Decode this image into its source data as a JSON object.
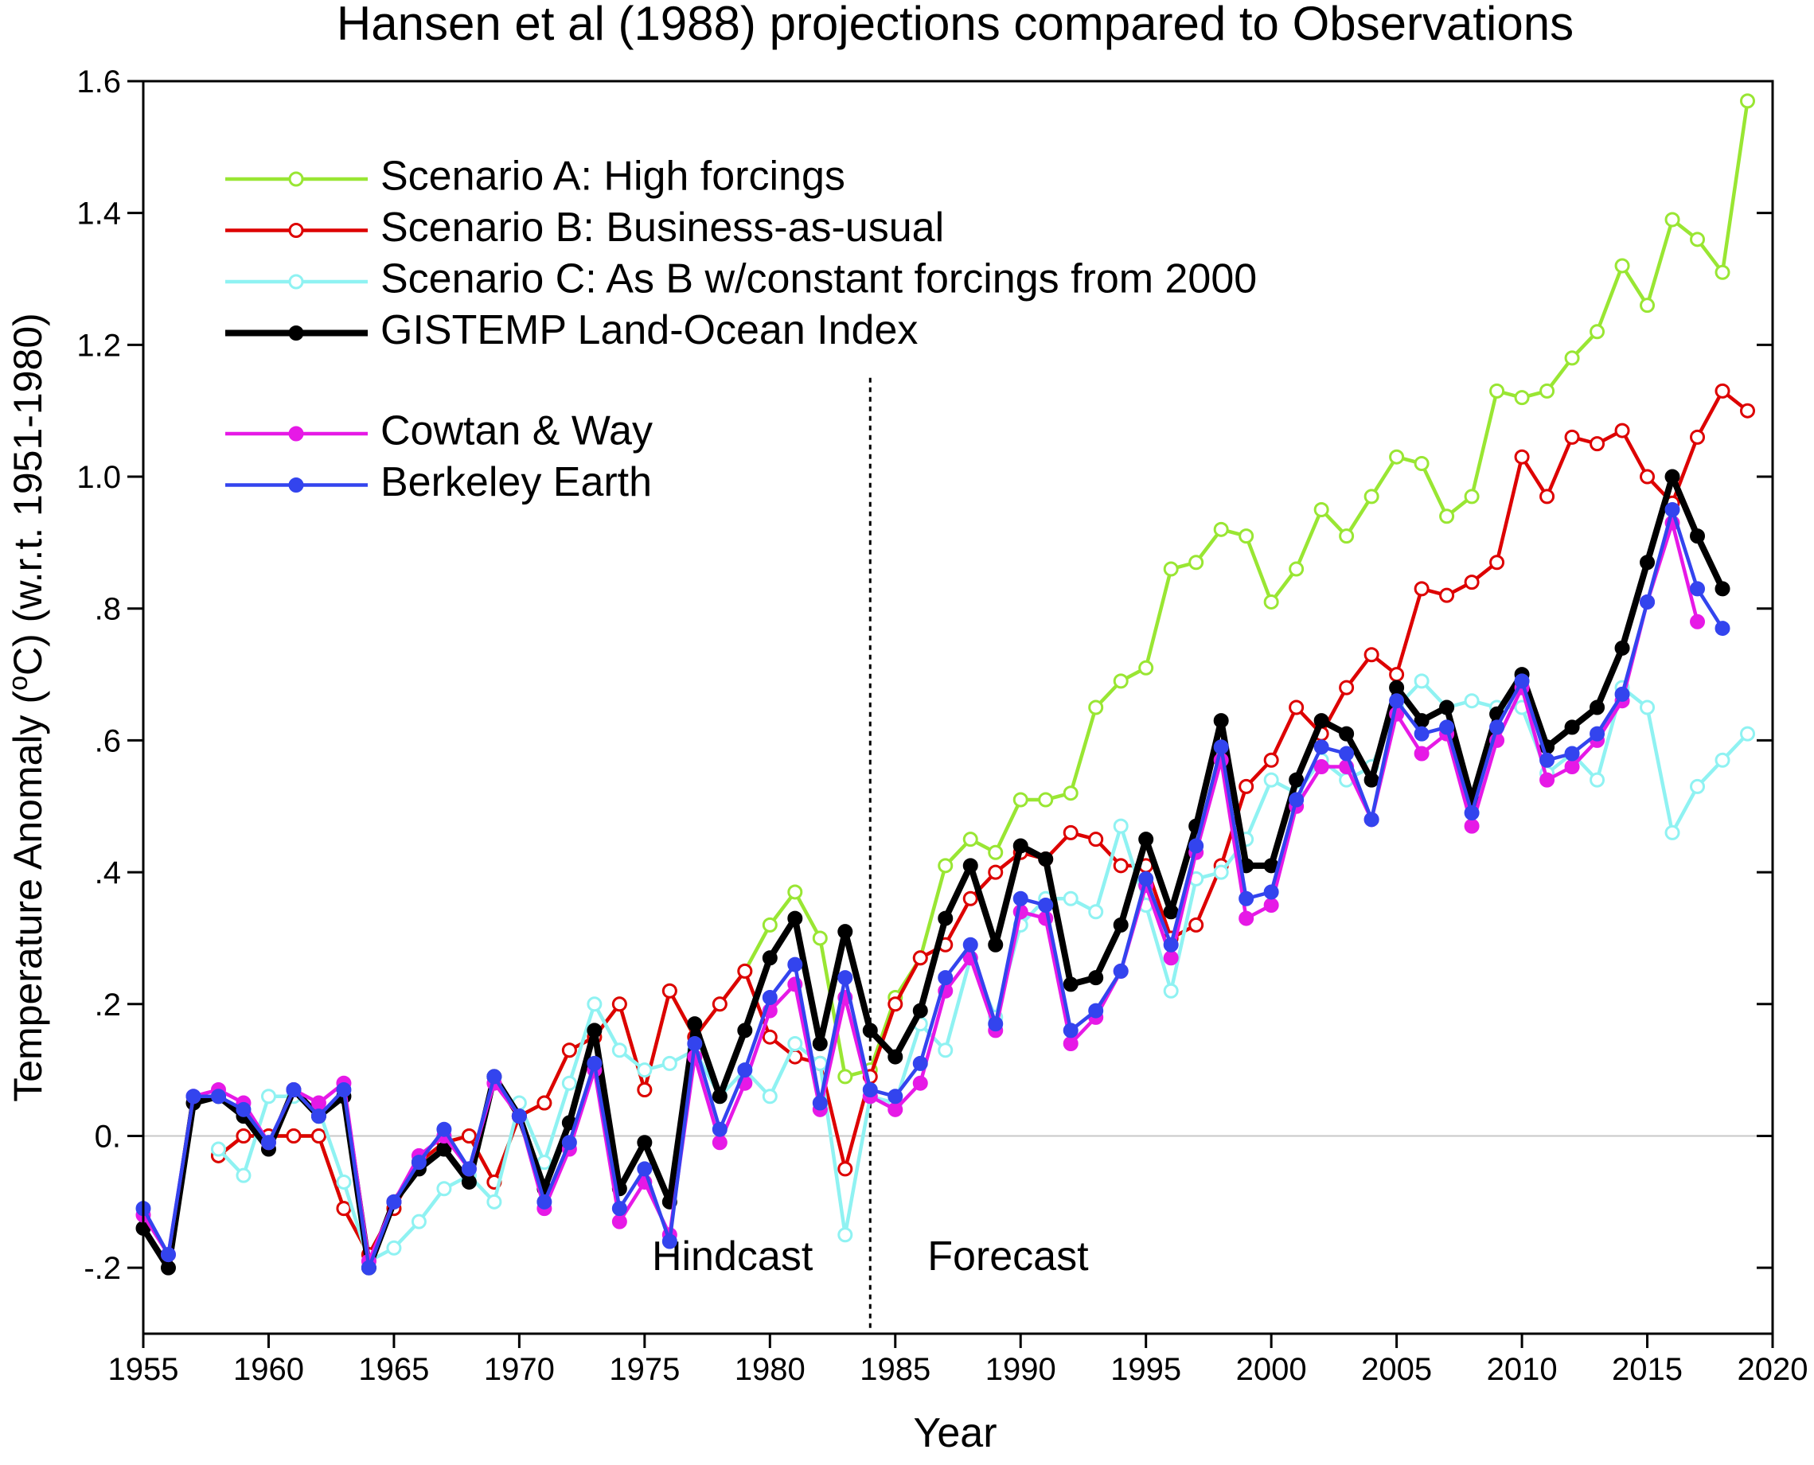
{
  "chart_data": {
    "type": "line",
    "title": "Hansen et al (1988) projections compared to Observations",
    "xlabel": "Year",
    "ylabel": [
      "Temperature Anomaly (",
      "o",
      "C) (w.r.t. 1951-1980)"
    ],
    "xlim": [
      1955,
      2020
    ],
    "ylim": [
      -0.3,
      1.6
    ],
    "xticks": [
      1955,
      1960,
      1965,
      1970,
      1975,
      1980,
      1985,
      1990,
      1995,
      2000,
      2005,
      2010,
      2015,
      2020
    ],
    "yticks": [
      {
        "value": -0.2,
        "label": "-.2"
      },
      {
        "value": 0,
        "label": "0."
      },
      {
        "value": 0.2,
        "label": ".2"
      },
      {
        "value": 0.4,
        "label": ".4"
      },
      {
        "value": 0.6,
        "label": ".6"
      },
      {
        "value": 0.8,
        "label": ".8"
      },
      {
        "value": 1,
        "label": "1.0"
      },
      1.2,
      1.4,
      1.6
    ],
    "zero_line": true,
    "divider": {
      "x": 1984
    },
    "annotations": [
      "Hindcast",
      "Forecast"
    ],
    "x": [
      1955,
      1956,
      1957,
      1958,
      1959,
      1960,
      1961,
      1962,
      1963,
      1964,
      1965,
      1966,
      1967,
      1968,
      1969,
      1970,
      1971,
      1972,
      1973,
      1974,
      1975,
      1976,
      1977,
      1978,
      1979,
      1980,
      1981,
      1982,
      1983,
      1984,
      1985,
      1986,
      1987,
      1988,
      1989,
      1990,
      1991,
      1992,
      1993,
      1994,
      1995,
      1996,
      1997,
      1998,
      1999,
      2000,
      2001,
      2002,
      2003,
      2004,
      2005,
      2006,
      2007,
      2008,
      2009,
      2010,
      2011,
      2012,
      2013,
      2014,
      2015,
      2016,
      2017,
      2018,
      2019
    ],
    "series": [
      {
        "name": "Scenario A: High forcings",
        "color": "#99e633",
        "filled": false,
        "width": 4.5,
        "values": [
          null,
          null,
          null,
          -0.03,
          0.0,
          0.0,
          0.0,
          0.0,
          -0.11,
          -0.18,
          -0.11,
          -0.04,
          -0.01,
          0.0,
          -0.07,
          0.03,
          0.05,
          0.13,
          0.15,
          0.2,
          0.07,
          0.22,
          0.15,
          0.2,
          0.25,
          0.32,
          0.37,
          0.3,
          0.09,
          0.1,
          0.21,
          0.27,
          0.41,
          0.45,
          0.43,
          0.51,
          0.51,
          0.52,
          0.65,
          0.69,
          0.71,
          0.86,
          0.87,
          0.92,
          0.91,
          0.81,
          0.86,
          0.95,
          0.91,
          0.97,
          1.03,
          1.02,
          0.94,
          0.97,
          1.13,
          1.12,
          1.13,
          1.18,
          1.22,
          1.32,
          1.26,
          1.39,
          1.36,
          1.31,
          1.57
        ]
      },
      {
        "name": "Scenario B: Business-as-usual",
        "color": "#dd0000",
        "filled": false,
        "width": 4.5,
        "values": [
          null,
          null,
          null,
          -0.03,
          0.0,
          0.0,
          0.0,
          0.0,
          -0.11,
          -0.18,
          -0.11,
          -0.04,
          -0.01,
          0.0,
          -0.07,
          0.03,
          0.05,
          0.13,
          0.15,
          0.2,
          0.07,
          0.22,
          0.15,
          0.2,
          0.25,
          0.15,
          0.12,
          0.11,
          -0.05,
          0.09,
          0.2,
          0.27,
          0.29,
          0.36,
          0.4,
          0.43,
          0.42,
          0.46,
          0.45,
          0.41,
          0.41,
          0.3,
          0.32,
          0.41,
          0.53,
          0.57,
          0.65,
          0.61,
          0.68,
          0.73,
          0.7,
          0.83,
          0.82,
          0.84,
          0.87,
          1.03,
          0.97,
          1.06,
          1.05,
          1.07,
          1.0,
          0.96,
          1.06,
          1.13,
          1.1
        ]
      },
      {
        "name": "Scenario C: As B w/constant forcings from 2000",
        "color": "#8ff2f2",
        "filled": false,
        "width": 4.5,
        "values": [
          null,
          null,
          null,
          -0.02,
          -0.06,
          0.06,
          0.06,
          0.04,
          -0.07,
          -0.19,
          -0.17,
          -0.13,
          -0.08,
          -0.06,
          -0.1,
          0.05,
          -0.04,
          0.08,
          0.2,
          0.13,
          0.1,
          0.11,
          0.13,
          0.06,
          0.1,
          0.06,
          0.14,
          0.11,
          -0.15,
          0.06,
          0.05,
          0.17,
          0.13,
          0.27,
          0.18,
          0.32,
          0.36,
          0.36,
          0.34,
          0.47,
          0.35,
          0.22,
          0.39,
          0.4,
          0.45,
          0.54,
          0.52,
          0.57,
          0.54,
          0.56,
          0.65,
          0.69,
          0.65,
          0.66,
          0.65,
          0.65,
          0.55,
          0.58,
          0.54,
          0.68,
          0.65,
          0.46,
          0.53,
          0.57,
          0.61
        ]
      },
      {
        "name": "GISTEMP Land-Ocean Index",
        "color": "#000000",
        "filled": true,
        "width": 8,
        "values": [
          -0.14,
          -0.2,
          0.05,
          0.06,
          0.03,
          -0.02,
          0.07,
          0.03,
          0.06,
          -0.2,
          -0.1,
          -0.05,
          -0.02,
          -0.07,
          0.09,
          0.03,
          -0.08,
          0.02,
          0.16,
          -0.08,
          -0.01,
          -0.1,
          0.17,
          0.06,
          0.16,
          0.27,
          0.33,
          0.14,
          0.31,
          0.16,
          0.12,
          0.19,
          0.33,
          0.41,
          0.29,
          0.44,
          0.42,
          0.23,
          0.24,
          0.32,
          0.45,
          0.34,
          0.47,
          0.63,
          0.41,
          0.41,
          0.54,
          0.63,
          0.61,
          0.54,
          0.68,
          0.63,
          0.65,
          0.51,
          0.64,
          0.7,
          0.59,
          0.62,
          0.65,
          0.74,
          0.87,
          1.0,
          0.91,
          0.83,
          null
        ]
      },
      {
        "name": "Cowtan & Way",
        "color": "#e619e6",
        "filled": true,
        "width": 4.5,
        "values": [
          -0.12,
          -0.18,
          0.06,
          0.07,
          0.05,
          -0.01,
          0.07,
          0.05,
          0.08,
          -0.19,
          -0.1,
          -0.03,
          0.0,
          -0.05,
          0.08,
          0.03,
          -0.11,
          -0.02,
          0.1,
          -0.13,
          -0.07,
          -0.15,
          0.12,
          -0.01,
          0.08,
          0.19,
          0.23,
          0.04,
          0.21,
          0.06,
          0.04,
          0.08,
          0.22,
          0.27,
          0.16,
          0.34,
          0.33,
          0.14,
          0.18,
          0.25,
          0.38,
          0.27,
          0.43,
          0.57,
          0.33,
          0.35,
          0.5,
          0.56,
          0.56,
          0.48,
          0.64,
          0.58,
          0.61,
          0.47,
          0.6,
          0.68,
          0.54,
          0.56,
          0.6,
          0.66,
          0.81,
          0.93,
          0.78,
          null,
          null
        ]
      },
      {
        "name": "Berkeley Earth",
        "color": "#3344ee",
        "filled": true,
        "width": 4.5,
        "values": [
          -0.11,
          -0.18,
          0.06,
          0.06,
          0.04,
          -0.01,
          0.07,
          0.03,
          0.07,
          -0.2,
          -0.1,
          -0.04,
          0.01,
          -0.05,
          0.09,
          0.03,
          -0.1,
          -0.01,
          0.11,
          -0.11,
          -0.05,
          -0.16,
          0.14,
          0.01,
          0.1,
          0.21,
          0.26,
          0.05,
          0.24,
          0.07,
          0.06,
          0.11,
          0.24,
          0.29,
          0.17,
          0.36,
          0.35,
          0.16,
          0.19,
          0.25,
          0.39,
          0.29,
          0.44,
          0.59,
          0.36,
          0.37,
          0.51,
          0.59,
          0.58,
          0.48,
          0.66,
          0.61,
          0.62,
          0.49,
          0.62,
          0.69,
          0.57,
          0.58,
          0.61,
          0.67,
          0.81,
          0.95,
          0.83,
          0.77,
          null
        ]
      }
    ]
  }
}
